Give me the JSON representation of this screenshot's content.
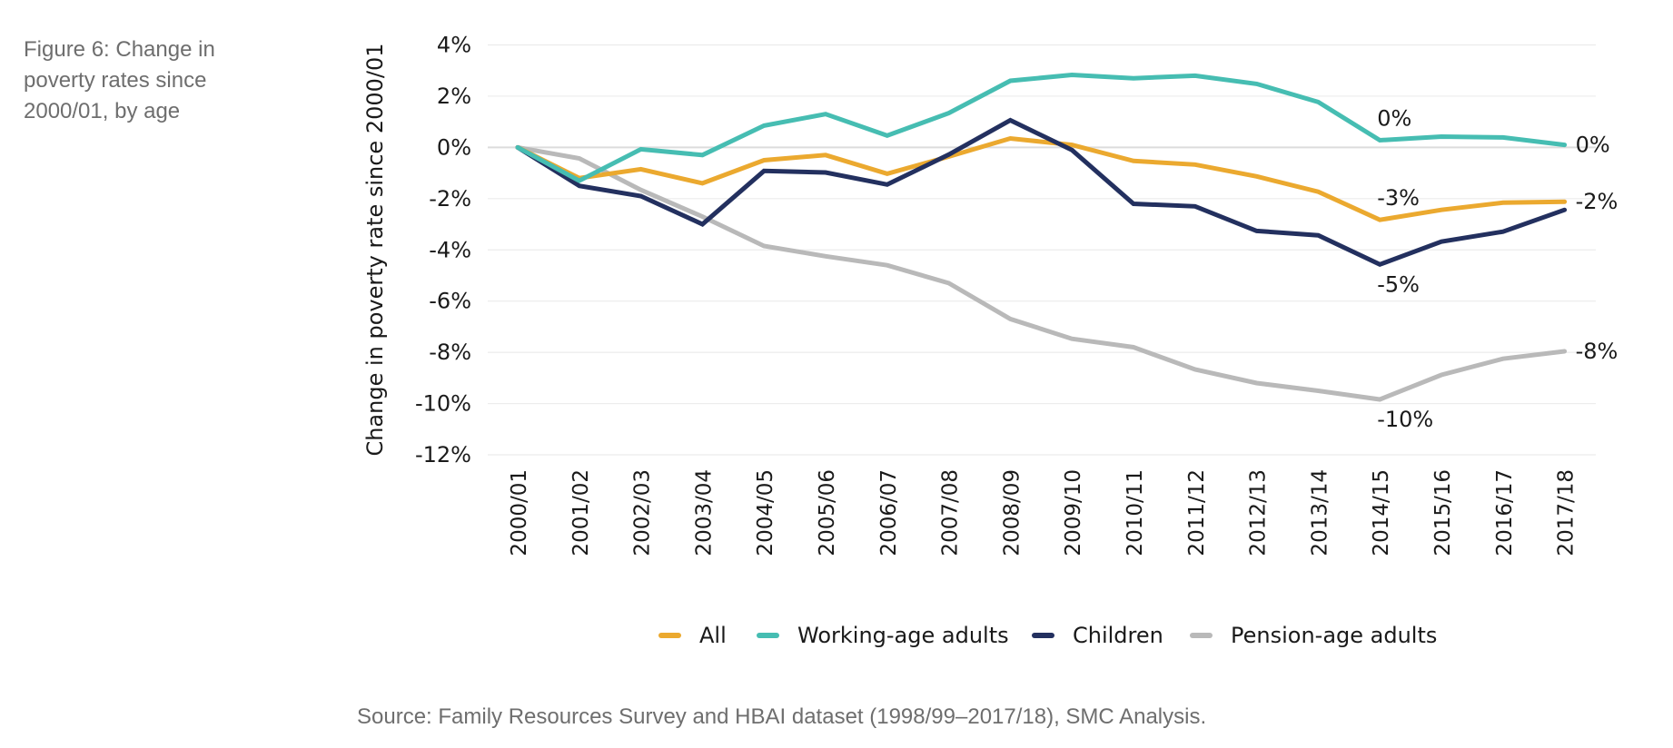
{
  "figure": {
    "title": "Figure 6: Change in poverty rates since 2000/01, by age",
    "source": "Source: Family Resources Survey and HBAI dataset (1998/99–2017/18), SMC Analysis."
  },
  "chart_data": {
    "type": "line",
    "title": "Figure 6: Change in poverty rates since 2000/01, by age",
    "xlabel": "",
    "ylabel": "Change in poverty rate since 2000/01",
    "ylim": [
      -12,
      4
    ],
    "yticks": [
      4,
      2,
      0,
      -2,
      -4,
      -6,
      -8,
      -10,
      -12
    ],
    "ytick_labels": [
      "4%",
      "2%",
      "0%",
      "-2%",
      "-4%",
      "-6%",
      "-8%",
      "-10%",
      "-12%"
    ],
    "grid": true,
    "legend_position": "bottom",
    "x": [
      "2000/01",
      "2001/02",
      "2002/03",
      "2003/04",
      "2004/05",
      "2005/06",
      "2006/07",
      "2007/08",
      "2008/09",
      "2009/10",
      "2010/11",
      "2011/12",
      "2012/13",
      "2013/14",
      "2014/15",
      "2015/16",
      "2016/17",
      "2017/18"
    ],
    "series": [
      {
        "name": "All",
        "color": "#EBA92F",
        "values": [
          0,
          -1.2,
          -0.85,
          -1.4,
          -0.5,
          -0.3,
          -1.03,
          -0.36,
          0.35,
          0.1,
          -0.53,
          -0.67,
          -1.13,
          -1.73,
          -2.83,
          -2.44,
          -2.16,
          -2.12
        ]
      },
      {
        "name": "Working-age adults",
        "color": "#46BDB2",
        "values": [
          0,
          -1.3,
          -0.07,
          -0.3,
          0.85,
          1.3,
          0.46,
          1.34,
          2.6,
          2.83,
          2.7,
          2.8,
          2.48,
          1.77,
          0.28,
          0.42,
          0.39,
          0.1
        ]
      },
      {
        "name": "Children",
        "color": "#23305F",
        "values": [
          0,
          -1.5,
          -1.9,
          -3.0,
          -0.92,
          -0.98,
          -1.45,
          -0.28,
          1.06,
          -0.1,
          -2.2,
          -2.3,
          -3.26,
          -3.43,
          -4.57,
          -3.68,
          -3.29,
          -2.44
        ]
      },
      {
        "name": "Pension-age adults",
        "color": "#B9B9B9",
        "values": [
          0,
          -0.43,
          -1.66,
          -2.7,
          -3.85,
          -4.25,
          -4.6,
          -5.3,
          -6.7,
          -7.47,
          -7.8,
          -8.67,
          -9.2,
          -9.5,
          -9.84,
          -8.88,
          -8.25,
          -7.96
        ]
      }
    ],
    "annotations": [
      {
        "series": "Working-age adults",
        "x": "2014/15",
        "text": "0%",
        "position": "above"
      },
      {
        "series": "All",
        "x": "2014/15",
        "text": "-3%",
        "position": "above"
      },
      {
        "series": "Children",
        "x": "2014/15",
        "text": "-5%",
        "position": "below"
      },
      {
        "series": "Pension-age adults",
        "x": "2014/15",
        "text": "-10%",
        "position": "below"
      },
      {
        "series": "Working-age adults",
        "x": "2017/18",
        "text": "0%",
        "position": "right"
      },
      {
        "series": "All",
        "x": "2017/18",
        "text": "-2%",
        "position": "right"
      },
      {
        "series": "Pension-age adults",
        "x": "2017/18",
        "text": "-8%",
        "position": "right"
      }
    ]
  }
}
